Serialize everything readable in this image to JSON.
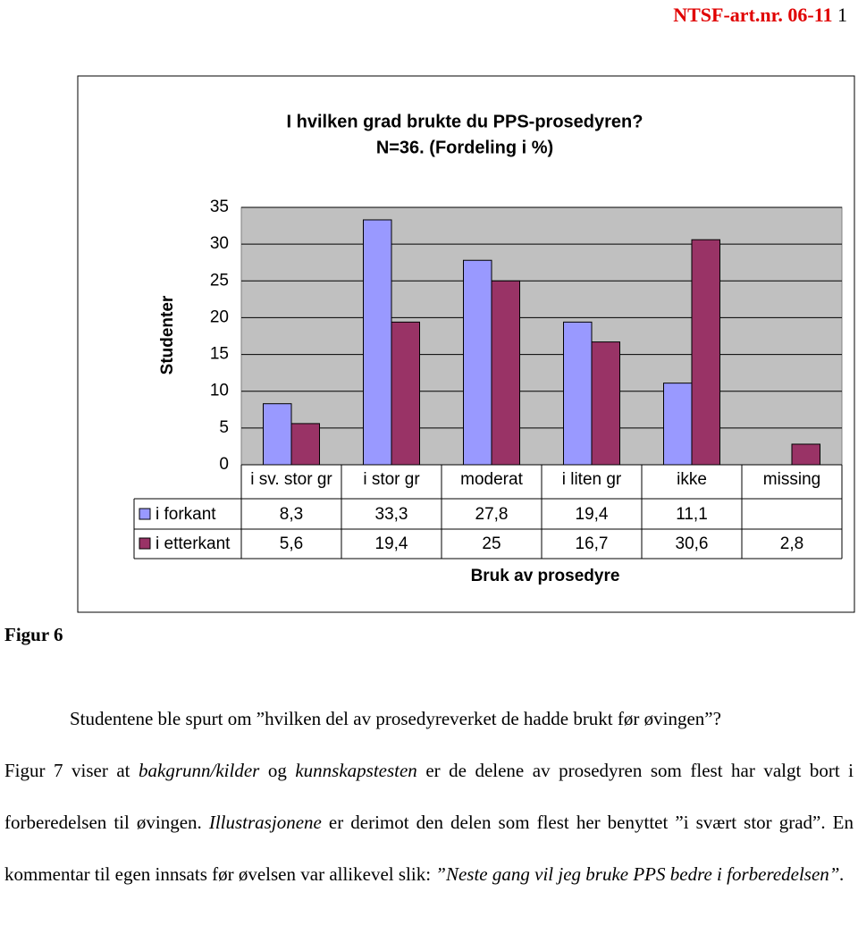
{
  "header": {
    "ref": "NTSF-art.nr. 06-11",
    "page": "1"
  },
  "chart_data": {
    "type": "bar",
    "title": [
      "I hvilken grad  brukte du PPS-prosedyren?",
      "N=36. (Fordeling i %)"
    ],
    "ylabel": "Studenter",
    "xlabel": "Bruk av prosedyre",
    "categories": [
      "i sv. stor gr",
      "i stor gr",
      "moderat",
      "i liten gr",
      "ikke",
      "missing"
    ],
    "series": [
      {
        "name": "i forkant",
        "color": "#9999ff",
        "values": [
          8.3,
          33.3,
          27.8,
          19.4,
          11.1,
          null
        ],
        "value_labels": [
          "8,3",
          "33,3",
          "27,8",
          "19,4",
          "11,1",
          null
        ]
      },
      {
        "name": "i etterkant",
        "color": "#993366",
        "values": [
          5.6,
          19.4,
          25,
          16.7,
          30.6,
          2.8
        ],
        "value_labels": [
          "5,6",
          "19,4",
          "25",
          "16,7",
          "30,6",
          "2,8"
        ]
      }
    ],
    "ylim": [
      0,
      35
    ],
    "yticks": [
      0,
      5,
      10,
      15,
      20,
      25,
      30,
      35
    ],
    "grid": true,
    "data_table": true
  },
  "figure_label": "Figur 6",
  "paragraphs": [
    [
      {
        "text": "Studentene ble spurt om ”hvilken del av prosedyreverket de hadde brukt før øvingen”?",
        "italic": false
      }
    ],
    [
      {
        "text": "Figur 7 viser at ",
        "italic": false
      },
      {
        "text": "bakgrunn/kilder",
        "italic": true
      },
      {
        "text": " og ",
        "italic": false
      },
      {
        "text": "kunnskapstesten",
        "italic": true
      },
      {
        "text": " er de delene av prosedyren som flest har valgt bort i forberedelsen til øvingen. ",
        "italic": false
      },
      {
        "text": "Illustrasjonene",
        "italic": true
      },
      {
        "text": " er derimot den delen som flest her benyttet ”i svært stor grad”. En kommentar til egen innsats før øvelsen var allikevel slik: ",
        "italic": false
      },
      {
        "text": "”Neste gang vil jeg bruke PPS bedre i forberedelsen”.",
        "italic": true
      }
    ]
  ]
}
